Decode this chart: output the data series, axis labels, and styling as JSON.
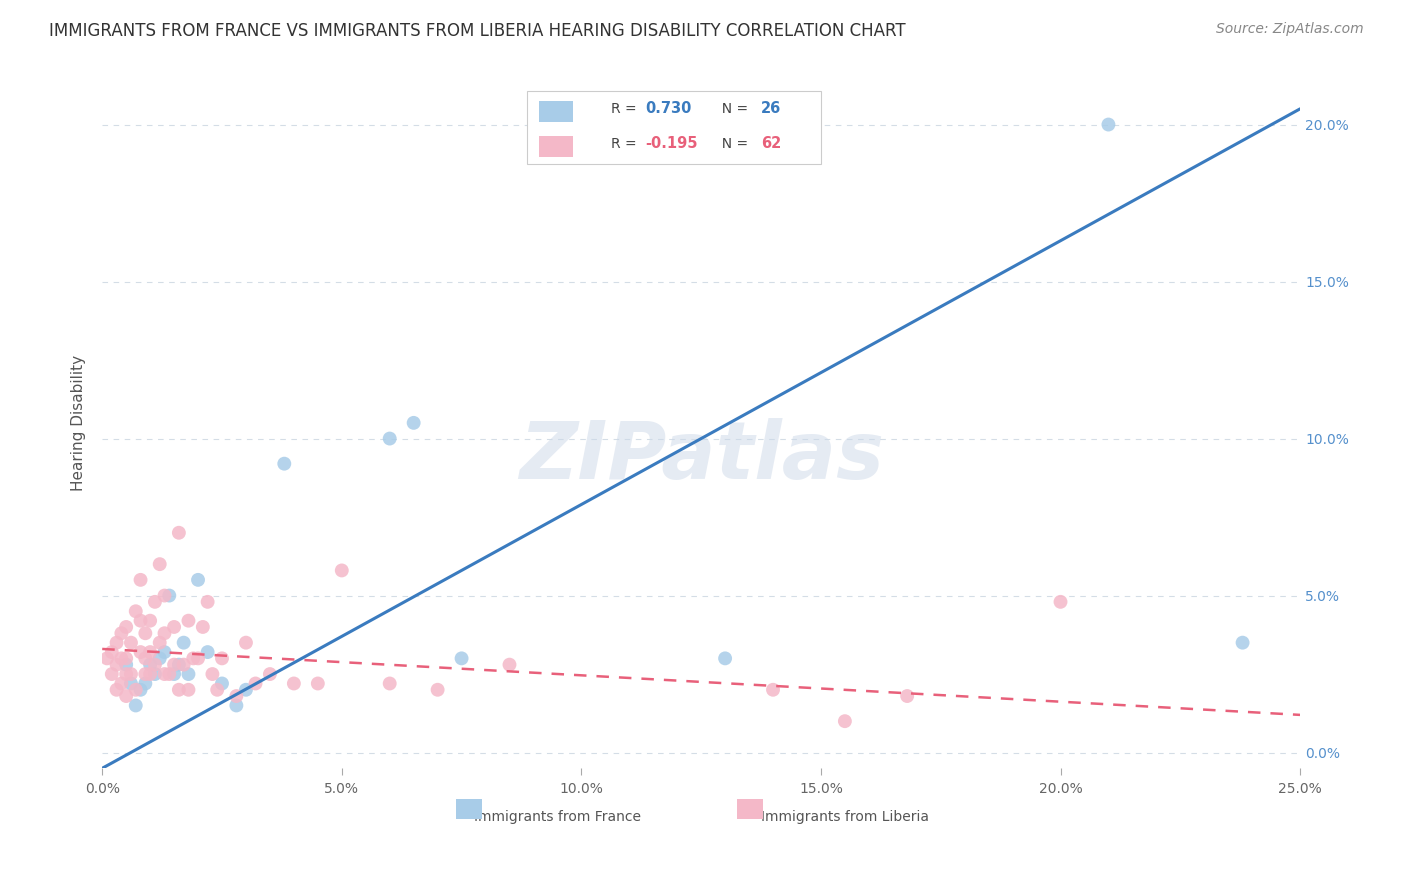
{
  "title": "IMMIGRANTS FROM FRANCE VS IMMIGRANTS FROM LIBERIA HEARING DISABILITY CORRELATION CHART",
  "source": "Source: ZipAtlas.com",
  "ylabel": "Hearing Disability",
  "watermark": "ZIPatlas",
  "france_R": 0.73,
  "france_N": 26,
  "liberia_R": -0.195,
  "liberia_N": 62,
  "france_color": "#a8cce8",
  "liberia_color": "#f4b8c8",
  "france_line_color": "#3a7bbf",
  "liberia_line_color": "#e8607a",
  "xmin": 0.0,
  "xmax": 0.25,
  "ymin": -0.005,
  "ymax": 0.215,
  "xticks": [
    0.0,
    0.05,
    0.1,
    0.15,
    0.2,
    0.25
  ],
  "xtick_labels": [
    "0.0%",
    "5.0%",
    "10.0%",
    "15.0%",
    "20.0%",
    "25.0%"
  ],
  "yticks": [
    0.0,
    0.05,
    0.1,
    0.15,
    0.2
  ],
  "right_ytick_labels": [
    "0.0%",
    "5.0%",
    "10.0%",
    "15.0%",
    "20.0%"
  ],
  "right_ytick_color": "#5590cc",
  "france_line_x0": 0.0,
  "france_line_y0": -0.005,
  "france_line_x1": 0.25,
  "france_line_y1": 0.205,
  "liberia_line_x0": 0.0,
  "liberia_line_y0": 0.033,
  "liberia_line_x1": 0.25,
  "liberia_line_y1": 0.012,
  "france_scatter_x": [
    0.005,
    0.006,
    0.007,
    0.008,
    0.009,
    0.01,
    0.011,
    0.012,
    0.013,
    0.014,
    0.015,
    0.016,
    0.017,
    0.018,
    0.02,
    0.022,
    0.025,
    0.028,
    0.03,
    0.038,
    0.06,
    0.065,
    0.075,
    0.13,
    0.21,
    0.238
  ],
  "france_scatter_y": [
    0.028,
    0.022,
    0.015,
    0.02,
    0.022,
    0.028,
    0.025,
    0.03,
    0.032,
    0.05,
    0.025,
    0.028,
    0.035,
    0.025,
    0.055,
    0.032,
    0.022,
    0.015,
    0.02,
    0.092,
    0.1,
    0.105,
    0.03,
    0.03,
    0.2,
    0.035
  ],
  "liberia_scatter_x": [
    0.001,
    0.002,
    0.002,
    0.003,
    0.003,
    0.003,
    0.004,
    0.004,
    0.004,
    0.005,
    0.005,
    0.005,
    0.005,
    0.006,
    0.006,
    0.007,
    0.007,
    0.008,
    0.008,
    0.008,
    0.009,
    0.009,
    0.009,
    0.01,
    0.01,
    0.01,
    0.011,
    0.011,
    0.012,
    0.012,
    0.013,
    0.013,
    0.013,
    0.014,
    0.015,
    0.015,
    0.016,
    0.016,
    0.017,
    0.018,
    0.018,
    0.019,
    0.02,
    0.021,
    0.022,
    0.023,
    0.024,
    0.025,
    0.028,
    0.03,
    0.032,
    0.035,
    0.04,
    0.045,
    0.05,
    0.06,
    0.07,
    0.085,
    0.14,
    0.155,
    0.168,
    0.2
  ],
  "liberia_scatter_y": [
    0.03,
    0.025,
    0.032,
    0.02,
    0.028,
    0.035,
    0.022,
    0.03,
    0.038,
    0.018,
    0.025,
    0.03,
    0.04,
    0.025,
    0.035,
    0.02,
    0.045,
    0.032,
    0.042,
    0.055,
    0.025,
    0.03,
    0.038,
    0.025,
    0.032,
    0.042,
    0.028,
    0.048,
    0.035,
    0.06,
    0.025,
    0.038,
    0.05,
    0.025,
    0.028,
    0.04,
    0.02,
    0.07,
    0.028,
    0.042,
    0.02,
    0.03,
    0.03,
    0.04,
    0.048,
    0.025,
    0.02,
    0.03,
    0.018,
    0.035,
    0.022,
    0.025,
    0.022,
    0.022,
    0.058,
    0.022,
    0.02,
    0.028,
    0.02,
    0.01,
    0.018,
    0.048
  ],
  "background_color": "#ffffff",
  "grid_color": "#d4dde6",
  "title_fontsize": 12,
  "axis_fontsize": 10,
  "source_fontsize": 10
}
